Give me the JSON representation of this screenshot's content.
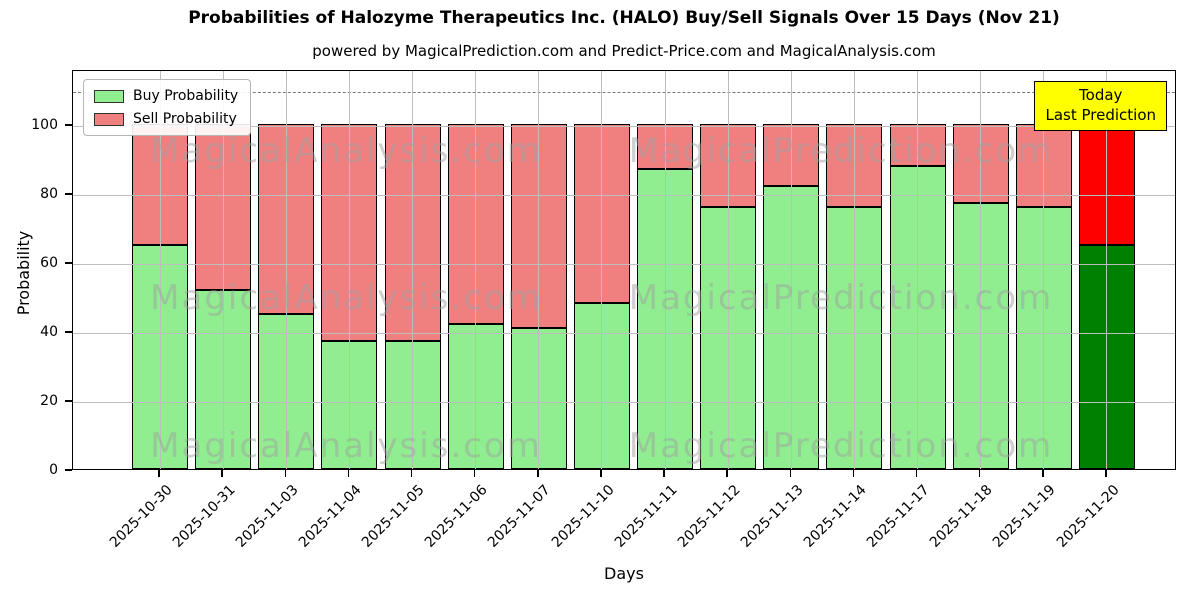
{
  "title": "Probabilities of Halozyme Therapeutics Inc. (HALO) Buy/Sell Signals Over 15 Days (Nov 21)",
  "subtitle": "powered by MagicalPrediction.com and Predict-Price.com and MagicalAnalysis.com",
  "legend": {
    "buy_label": "Buy Probability",
    "sell_label": "Sell Probability"
  },
  "annotation": {
    "line1": "Today",
    "line2": "Last Prediction",
    "bg_color": "#ffff00"
  },
  "watermarks": [
    "MagicalAnalysis.com",
    "MagicalPrediction.com"
  ],
  "chart_data": {
    "type": "bar",
    "stacked": true,
    "title": "Probabilities of Halozyme Therapeutics Inc. (HALO) Buy/Sell Signals Over 15 Days (Nov 21)",
    "xlabel": "Days",
    "ylabel": "Probability",
    "categories": [
      "2025-10-30",
      "2025-10-31",
      "2025-11-03",
      "2025-11-04",
      "2025-11-05",
      "2025-11-06",
      "2025-11-07",
      "2025-11-10",
      "2025-11-11",
      "2025-11-12",
      "2025-11-13",
      "2025-11-14",
      "2025-11-17",
      "2025-11-18",
      "2025-11-19",
      "2025-11-20"
    ],
    "series": [
      {
        "name": "Buy Probability",
        "color": "#90ee90",
        "values": [
          65,
          52,
          45,
          37,
          37,
          42,
          41,
          48,
          87,
          76,
          82,
          76,
          88,
          77,
          76,
          65
        ]
      },
      {
        "name": "Sell Probability",
        "color": "#f08080",
        "values": [
          35,
          48,
          55,
          63,
          63,
          58,
          59,
          52,
          13,
          24,
          18,
          24,
          12,
          23,
          24,
          35
        ]
      }
    ],
    "today_bar": {
      "index": 15,
      "buy_color": "#008000",
      "sell_color": "#ff0000"
    },
    "ylim": [
      0,
      116
    ],
    "yticks": [
      0,
      20,
      40,
      60,
      80,
      100
    ],
    "dashed_line_y": 110,
    "grid": true,
    "legend_position": "upper-left"
  }
}
